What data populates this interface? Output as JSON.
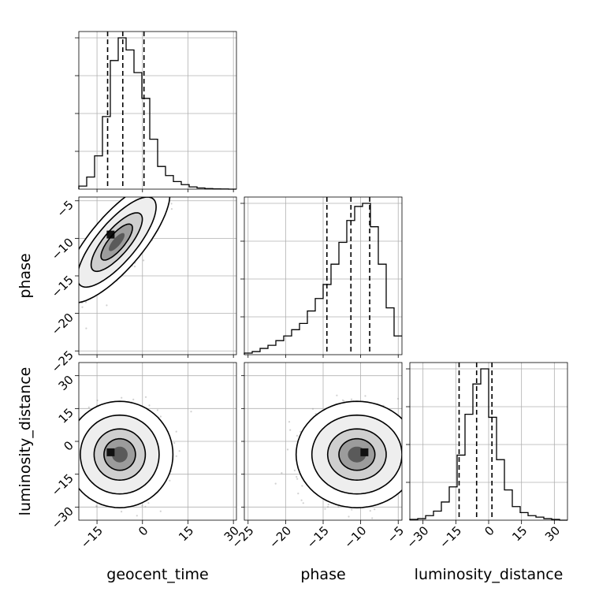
{
  "chart_data": {
    "type": "corner",
    "parameters": [
      "geocent_time",
      "phase",
      "luminosity_distance"
    ],
    "axis_labels": {
      "x": [
        "geocent_time",
        "phase",
        "luminosity_distance"
      ],
      "y": [
        "",
        "phase",
        "luminosity_distance"
      ]
    },
    "ranges": {
      "geocent_time": [
        -21,
        31
      ],
      "phase": [
        -25.5,
        -4.5
      ],
      "luminosity_distance": [
        -36,
        36
      ]
    },
    "ticks": {
      "geocent_time": [
        -15,
        0,
        15,
        30
      ],
      "phase": [
        -25,
        -20,
        -15,
        -10,
        -5
      ],
      "luminosity_distance": [
        -30,
        -15,
        0,
        15,
        30
      ]
    },
    "quantiles": {
      "geocent_time": [
        -11.5,
        -6.5,
        0.5
      ],
      "phase": [
        -14.5,
        -11.3,
        -8.8
      ],
      "luminosity_distance": [
        -13.5,
        -5.5,
        1.5
      ]
    },
    "histograms": {
      "geocent_time": {
        "edges": [
          -21,
          -18.4,
          -15.8,
          -13.2,
          -10.6,
          -8,
          -5.4,
          -2.8,
          -0.2,
          2.4,
          5,
          7.6,
          10.2,
          12.8,
          15.4,
          18,
          20.6,
          23.2,
          25.8,
          28.4,
          31
        ],
        "counts": [
          2,
          8,
          22,
          48,
          85,
          100,
          92,
          77,
          60,
          33,
          15,
          9,
          5,
          3,
          1.5,
          0.8,
          0.4,
          0.2,
          0.1,
          0
        ]
      },
      "phase": {
        "edges": [
          -25.5,
          -24.45,
          -23.4,
          -22.35,
          -21.3,
          -20.25,
          -19.2,
          -18.15,
          -17.1,
          -16.05,
          -15,
          -13.95,
          -12.9,
          -11.85,
          -10.8,
          -9.75,
          -8.7,
          -7.65,
          -6.6,
          -5.55,
          -4.5
        ],
        "counts": [
          1,
          2,
          4,
          6,
          9,
          12,
          16,
          20,
          28,
          36,
          45,
          58,
          72,
          86,
          95,
          97,
          82,
          58,
          30,
          12
        ]
      },
      "luminosity_distance": {
        "edges": [
          -36,
          -32.4,
          -28.8,
          -25.2,
          -21.6,
          -18,
          -14.4,
          -10.8,
          -7.2,
          -3.6,
          0,
          3.6,
          7.2,
          10.8,
          14.4,
          18,
          21.6,
          25.2,
          28.8,
          32.4,
          36
        ],
        "counts": [
          0.5,
          1,
          3,
          6,
          12,
          22,
          43,
          70,
          90,
          100,
          68,
          40,
          20,
          9,
          5,
          3,
          2,
          1,
          0.5,
          0
        ]
      }
    },
    "joint": [
      {
        "x": "geocent_time",
        "y": "phase",
        "center": [
          -8.5,
          -10.5
        ],
        "sd": [
          6.5,
          3.0
        ],
        "corr": 0.78,
        "peak": [
          -10.5,
          -9.5
        ]
      },
      {
        "x": "geocent_time",
        "y": "luminosity_distance",
        "center": [
          -7.5,
          -6
        ],
        "sd": [
          6.5,
          9.0
        ],
        "corr": 0.0,
        "peak": [
          -10.5,
          -5
        ]
      },
      {
        "x": "phase",
        "y": "luminosity_distance",
        "center": [
          -10.5,
          -6
        ],
        "sd": [
          3.0,
          9.0
        ],
        "corr": 0.0,
        "peak": [
          -9.5,
          -5
        ]
      }
    ],
    "contour_levels": [
      0.8,
      1.3,
      2.0,
      2.7
    ],
    "grid": true,
    "colors": {
      "hist": "#000000",
      "scatter": "#9a9a9a",
      "contour": "#000000"
    }
  }
}
